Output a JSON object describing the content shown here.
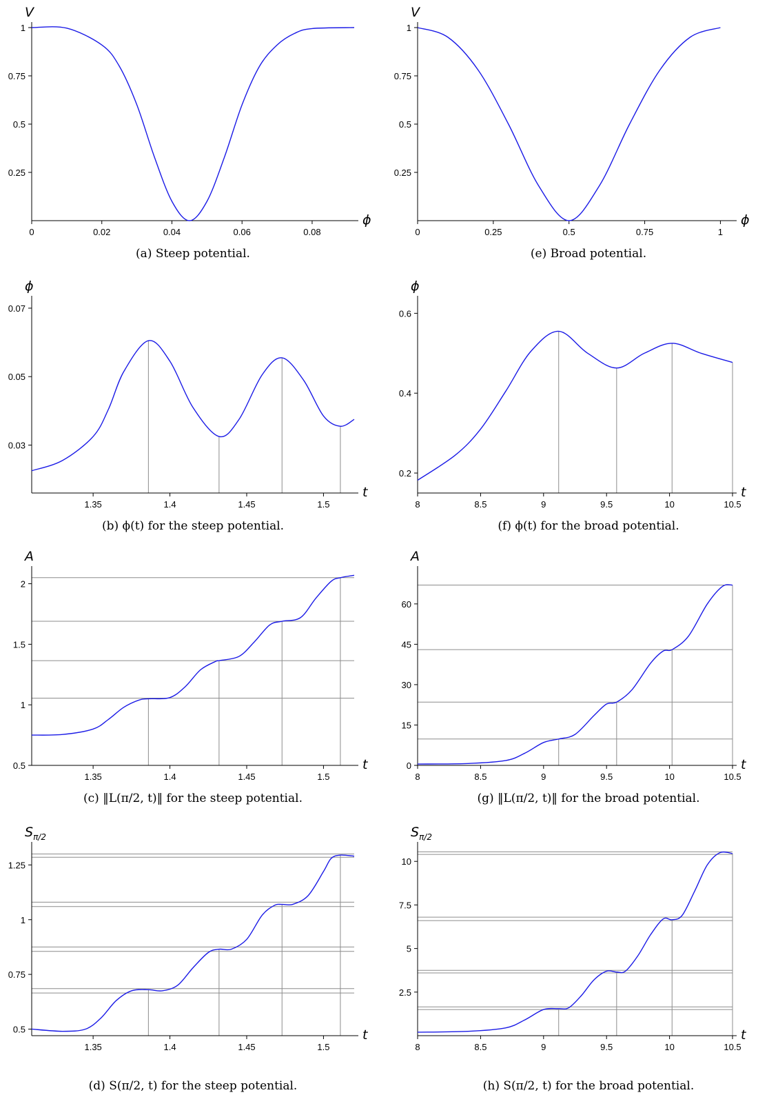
{
  "colors": {
    "curve": "#1a1ae6",
    "guide": "#8c8c8c",
    "axis": "#000000"
  },
  "chart_data": [
    {
      "id": "a",
      "type": "line",
      "caption": "(a) Steep potential.",
      "xlabel": "ϕ",
      "ylabel": "V",
      "xlim": [
        0,
        0.092
      ],
      "ylim": [
        0,
        1
      ],
      "xticks": [
        0,
        0.02,
        0.04,
        0.06,
        0.08
      ],
      "xtick_labels": [
        "0",
        "0.02",
        "0.04",
        "0.06",
        "0.08"
      ],
      "yticks": [
        0.25,
        0.5,
        0.75,
        1
      ],
      "ytick_labels": [
        "0.25",
        "0.5",
        "0.75",
        "1"
      ],
      "series": [
        {
          "x": [
            0,
            0.01,
            0.02,
            0.025,
            0.03,
            0.035,
            0.04,
            0.045,
            0.05,
            0.055,
            0.06,
            0.065,
            0.07,
            0.075,
            0.08,
            0.092
          ],
          "y": [
            1,
            0.997,
            0.91,
            0.8,
            0.6,
            0.33,
            0.1,
            0,
            0.1,
            0.33,
            0.6,
            0.8,
            0.91,
            0.97,
            0.995,
            1
          ]
        }
      ],
      "vlines": [],
      "hlines": []
    },
    {
      "id": "e",
      "type": "line",
      "caption": "(e) Broad potential.",
      "xlabel": "ϕ",
      "ylabel": "V",
      "xlim": [
        0,
        1.04
      ],
      "ylim": [
        0,
        1
      ],
      "xticks": [
        0,
        0.25,
        0.5,
        0.75,
        1
      ],
      "xtick_labels": [
        "0",
        "0.25",
        "0.5",
        "0.75",
        "1"
      ],
      "yticks": [
        0.25,
        0.5,
        0.75,
        1
      ],
      "ytick_labels": [
        "0.25",
        "0.5",
        "0.75",
        "1"
      ],
      "series": [
        {
          "x": [
            0,
            0.1,
            0.2,
            0.3,
            0.4,
            0.5,
            0.6,
            0.7,
            0.8,
            0.9,
            1
          ],
          "y": [
            1,
            0.95,
            0.78,
            0.5,
            0.18,
            0,
            0.18,
            0.5,
            0.78,
            0.95,
            1
          ]
        }
      ],
      "vlines": [],
      "hlines": []
    },
    {
      "id": "b",
      "type": "line",
      "caption": "(b) ϕ(t) for the steep potential.",
      "xlabel": "t",
      "ylabel": "ϕ",
      "xlim": [
        1.31,
        1.52
      ],
      "ylim": [
        0.016,
        0.072
      ],
      "xticks": [
        1.35,
        1.4,
        1.45,
        1.5
      ],
      "xtick_labels": [
        "1.35",
        "1.4",
        "1.45",
        "1.5"
      ],
      "yticks": [
        0.03,
        0.05,
        0.07
      ],
      "ytick_labels": [
        "0.03",
        "0.05",
        "0.07"
      ],
      "series": [
        {
          "x": [
            1.31,
            1.33,
            1.35,
            1.36,
            1.37,
            1.386,
            1.4,
            1.415,
            1.432,
            1.445,
            1.46,
            1.473,
            1.487,
            1.5,
            1.511,
            1.52
          ],
          "y": [
            0.0225,
            0.0255,
            0.0325,
            0.0405,
            0.0515,
            0.0605,
            0.0545,
            0.041,
            0.0325,
            0.0375,
            0.0505,
            0.0555,
            0.049,
            0.0385,
            0.0355,
            0.0375
          ]
        }
      ],
      "vlines": [
        1.386,
        1.432,
        1.473,
        1.511
      ],
      "hlines": []
    },
    {
      "id": "f",
      "type": "line",
      "caption": "(f) ϕ(t) for the broad potential.",
      "xlabel": "t",
      "ylabel": "ϕ",
      "xlim": [
        8,
        10.5
      ],
      "ylim": [
        0.15,
        0.63
      ],
      "xticks": [
        8,
        8.5,
        9,
        9.5,
        10,
        10.5
      ],
      "xtick_labels": [
        "8",
        "8.5",
        "9",
        "9.5",
        "10",
        "10.5"
      ],
      "yticks": [
        0.2,
        0.4,
        0.6
      ],
      "ytick_labels": [
        "0.2",
        "0.4",
        "0.6"
      ],
      "series": [
        {
          "x": [
            8,
            8.3,
            8.5,
            8.7,
            8.9,
            9.12,
            9.35,
            9.58,
            9.8,
            10.02,
            10.25,
            10.5
          ],
          "y": [
            0.182,
            0.245,
            0.31,
            0.405,
            0.505,
            0.555,
            0.5,
            0.463,
            0.5,
            0.525,
            0.5,
            0.477
          ]
        }
      ],
      "vlines": [
        9.12,
        9.58,
        10.02,
        10.5
      ],
      "hlines": []
    },
    {
      "id": "c",
      "type": "line",
      "caption": "(c) ‖L(π/2, t)‖ for the steep potential.",
      "xlabel": "t",
      "ylabel": "A",
      "xlim": [
        1.31,
        1.52
      ],
      "ylim": [
        0.5,
        2.1
      ],
      "xticks": [
        1.35,
        1.4,
        1.45,
        1.5
      ],
      "xtick_labels": [
        "1.35",
        "1.4",
        "1.45",
        "1.5"
      ],
      "yticks": [
        0.5,
        1,
        1.5,
        2
      ],
      "ytick_labels": [
        "0.5",
        "1",
        "1.5",
        "2"
      ],
      "series": [
        {
          "x": [
            1.31,
            1.33,
            1.35,
            1.36,
            1.37,
            1.38,
            1.386,
            1.4,
            1.41,
            1.42,
            1.43,
            1.432,
            1.445,
            1.455,
            1.465,
            1.473,
            1.485,
            1.495,
            1.505,
            1.511,
            1.52
          ],
          "y": [
            0.75,
            0.755,
            0.8,
            0.88,
            0.98,
            1.04,
            1.05,
            1.06,
            1.15,
            1.29,
            1.36,
            1.365,
            1.4,
            1.52,
            1.66,
            1.69,
            1.72,
            1.88,
            2.02,
            2.05,
            2.07
          ]
        }
      ],
      "vlines": [
        1.386,
        1.432,
        1.473,
        1.511
      ],
      "hlines": [
        1.055,
        1.365,
        1.69,
        2.05
      ]
    },
    {
      "id": "g",
      "type": "line",
      "caption": "(g) ‖L(π/2, t)‖ for the broad potential.",
      "xlabel": "t",
      "ylabel": "A",
      "xlim": [
        8,
        10.5
      ],
      "ylim": [
        0,
        72
      ],
      "xticks": [
        8,
        8.5,
        9,
        9.5,
        10,
        10.5
      ],
      "xtick_labels": [
        "8",
        "8.5",
        "9",
        "9.5",
        "10",
        "10.5"
      ],
      "yticks": [
        0,
        15,
        30,
        45,
        60
      ],
      "ytick_labels": [
        "0",
        "15",
        "30",
        "45",
        "60"
      ],
      "series": [
        {
          "x": [
            8,
            8.4,
            8.7,
            8.85,
            9.0,
            9.12,
            9.25,
            9.4,
            9.5,
            9.58,
            9.7,
            9.85,
            9.95,
            10.02,
            10.15,
            10.3,
            10.42,
            10.5
          ],
          "y": [
            0.5,
            0.7,
            1.8,
            4.5,
            8.5,
            9.8,
            11.5,
            18.5,
            22.8,
            23.5,
            28,
            38,
            42.5,
            43,
            48,
            60,
            66.5,
            67
          ]
        }
      ],
      "vlines": [
        9.12,
        9.58,
        10.02,
        10.5
      ],
      "hlines": [
        9.8,
        23.5,
        43,
        67
      ]
    },
    {
      "id": "d",
      "type": "line",
      "caption": "(d) S(π/2, t) for the steep potential.",
      "xlabel": "t",
      "ylabel": "S",
      "ylabel_sub": "π/2",
      "xlim": [
        1.31,
        1.52
      ],
      "ylim": [
        0.47,
        1.33
      ],
      "xticks": [
        1.35,
        1.4,
        1.45,
        1.5
      ],
      "xtick_labels": [
        "1.35",
        "1.4",
        "1.45",
        "1.5"
      ],
      "yticks": [
        0.5,
        0.75,
        1,
        1.25
      ],
      "ytick_labels": [
        "0.5",
        "0.75",
        "1",
        "1.25"
      ],
      "series": [
        {
          "x": [
            1.31,
            1.33,
            1.345,
            1.355,
            1.365,
            1.375,
            1.386,
            1.395,
            1.405,
            1.415,
            1.425,
            1.432,
            1.44,
            1.45,
            1.46,
            1.468,
            1.473,
            1.48,
            1.49,
            1.5,
            1.505,
            1.511,
            1.52
          ],
          "y": [
            0.5,
            0.49,
            0.5,
            0.55,
            0.63,
            0.675,
            0.68,
            0.675,
            0.7,
            0.78,
            0.85,
            0.865,
            0.865,
            0.91,
            1.02,
            1.065,
            1.07,
            1.07,
            1.11,
            1.22,
            1.28,
            1.295,
            1.29
          ]
        }
      ],
      "vlines": [
        1.386,
        1.432,
        1.473,
        1.511
      ],
      "hlines": [
        0.665,
        0.685,
        0.855,
        0.875,
        1.06,
        1.08,
        1.285,
        1.3
      ]
    },
    {
      "id": "h",
      "type": "line",
      "caption": "(h) S(π/2, t) for the broad potential.",
      "xlabel": "t",
      "ylabel": "S",
      "ylabel_sub": "π/2",
      "xlim": [
        8,
        10.5
      ],
      "ylim": [
        0,
        10.8
      ],
      "xticks": [
        8,
        8.5,
        9,
        9.5,
        10,
        10.5
      ],
      "xtick_labels": [
        "8",
        "8.5",
        "9",
        "9.5",
        "10",
        "10.5"
      ],
      "yticks": [
        2.5,
        5,
        7.5,
        10
      ],
      "ytick_labels": [
        "2.5",
        "5",
        "7.5",
        "10"
      ],
      "series": [
        {
          "x": [
            8,
            8.4,
            8.7,
            8.85,
            9.0,
            9.12,
            9.2,
            9.3,
            9.4,
            9.5,
            9.58,
            9.65,
            9.75,
            9.85,
            9.95,
            10.02,
            10.1,
            10.2,
            10.3,
            10.4,
            10.5
          ],
          "y": [
            0.2,
            0.25,
            0.45,
            0.9,
            1.5,
            1.55,
            1.6,
            2.3,
            3.2,
            3.7,
            3.65,
            3.7,
            4.6,
            5.8,
            6.7,
            6.65,
            6.9,
            8.3,
            9.8,
            10.5,
            10.45
          ]
        }
      ],
      "vlines": [
        9.12,
        9.58,
        10.02,
        10.5
      ],
      "hlines": [
        1.5,
        1.65,
        3.6,
        3.75,
        6.6,
        6.8,
        10.4,
        10.55
      ]
    }
  ]
}
